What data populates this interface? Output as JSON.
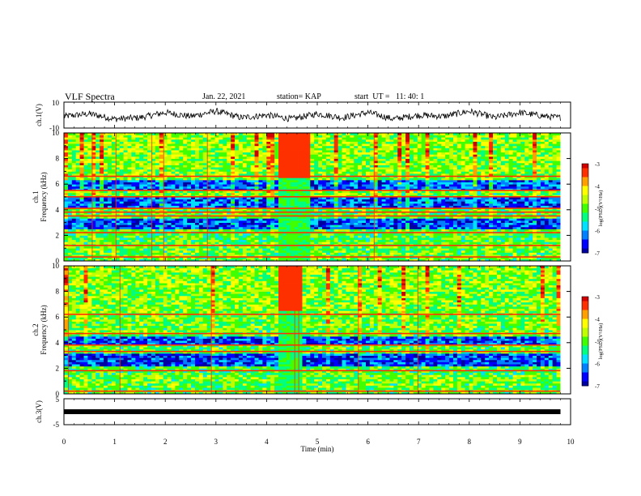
{
  "header": {
    "title": "VLF Spectra",
    "date": "Jan. 22, 2021",
    "station": "station= KAP",
    "start_ut": "start  UT =   11: 40: 1"
  },
  "colors": {
    "spectrogram_scale": [
      "#0000a0",
      "#0000ff",
      "#0080ff",
      "#00e0ff",
      "#00ff80",
      "#40ff00",
      "#c0ff00",
      "#ffff00",
      "#ffa000",
      "#ff3000",
      "#d00000"
    ],
    "waveform": "#000000"
  },
  "chart_data": [
    {
      "type": "line",
      "panel": "ch1-waveform",
      "ylabel": "ch.1(V)",
      "ylim": [
        -10,
        10
      ],
      "yticks": [
        "10",
        "-10"
      ],
      "xlim": [
        0,
        10
      ],
      "series": [
        {
          "x": [
            0,
            0.5,
            1,
            1.5,
            2,
            2.5,
            3,
            3.5,
            4,
            4.5,
            5,
            5.5,
            6,
            6.5,
            7,
            7.5,
            8,
            8.5,
            9,
            9.5,
            9.8
          ],
          "values": [
            -1,
            1,
            -3,
            -2,
            2,
            -1,
            3,
            -2,
            0,
            -3,
            1,
            -2,
            2,
            -3,
            0,
            -1,
            3,
            -2,
            2,
            -1,
            -2
          ]
        }
      ]
    },
    {
      "type": "heatmap",
      "panel": "ch1-spectrogram",
      "ylabel": "ch.1\nFrequency (kHz)",
      "ylim": [
        0,
        10
      ],
      "yticks": [
        "0",
        "2",
        "4",
        "6",
        "8",
        "10"
      ],
      "xlim": [
        0,
        10
      ],
      "colorbar": {
        "label": "log(PSD)(V²/Hz)",
        "range": [
          -7,
          -3
        ],
        "ticks": [
          "-3",
          "-4",
          "-5",
          "-6",
          "-7"
        ]
      },
      "lines_khz": [
        0.3,
        1.2,
        2.2,
        3.5,
        3.8,
        4.1,
        5.0,
        5.5,
        6.6
      ],
      "dark_bands_khz": [
        [
          2.5,
          3.3
        ],
        [
          4.2,
          5.0
        ],
        [
          5.5,
          6.4
        ]
      ],
      "event_window_min": [
        4.2,
        4.8
      ]
    },
    {
      "type": "heatmap",
      "panel": "ch2-spectrogram",
      "ylabel": "ch.2\nFrequency (kHz)",
      "ylim": [
        0,
        10
      ],
      "yticks": [
        "0",
        "2",
        "4",
        "6",
        "8",
        "10"
      ],
      "xlim": [
        0,
        10
      ],
      "colorbar": {
        "label": "log(PSD)(V²/Hz)",
        "range": [
          -7,
          -3
        ],
        "ticks": [
          "-3",
          "-4",
          "-5",
          "-6",
          "-7"
        ]
      },
      "lines_khz": [
        0.2,
        1.8,
        3.3,
        3.8,
        4.7,
        6.2
      ],
      "dark_bands_khz": [
        [
          2.2,
          3.2
        ],
        [
          3.9,
          4.5
        ]
      ],
      "event_window_min": [
        4.2,
        4.7
      ]
    },
    {
      "type": "line",
      "panel": "ch3-waveform",
      "ylabel": "ch.3(V)",
      "ylim": [
        -5,
        5
      ],
      "yticks": [
        "5",
        "-5"
      ],
      "xlim": [
        0,
        10
      ],
      "series": [
        {
          "x": [
            0,
            9.8
          ],
          "values": [
            0,
            0
          ]
        }
      ]
    }
  ],
  "x_axis": {
    "label": "Time  (min)",
    "ticks": [
      "0",
      "1",
      "2",
      "3",
      "4",
      "5",
      "6",
      "7",
      "8",
      "9",
      "10"
    ]
  }
}
